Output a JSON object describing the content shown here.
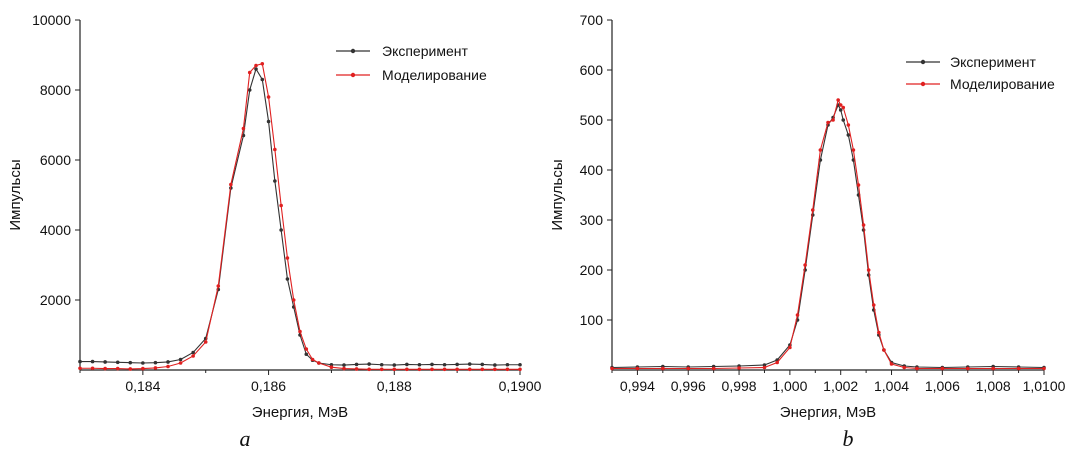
{
  "chart_data": [
    {
      "type": "line",
      "panel_label": "a",
      "xlabel": "Энергия, МэВ",
      "ylabel": "Импульсы",
      "xlim": [
        0.183,
        0.19
      ],
      "ylim": [
        0,
        10000
      ],
      "x_ticks": [
        0.184,
        0.186,
        0.188,
        0.19
      ],
      "x_tick_labels": [
        "0,184",
        "0,186",
        "0,188",
        "0,1900"
      ],
      "y_ticks": [
        2000,
        4000,
        6000,
        8000,
        10000
      ],
      "y_tick_labels": [
        "2000",
        "4000",
        "6000",
        "8000",
        "10000"
      ],
      "legend_position": "top-right",
      "series": [
        {
          "name": "Эксперимент",
          "color": "#333333",
          "x": [
            0.183,
            0.1832,
            0.1834,
            0.1836,
            0.1838,
            0.184,
            0.1842,
            0.1844,
            0.1846,
            0.1848,
            0.185,
            0.1852,
            0.1854,
            0.1856,
            0.1857,
            0.1858,
            0.1859,
            0.186,
            0.1861,
            0.1862,
            0.1863,
            0.1864,
            0.1865,
            0.1866,
            0.1867,
            0.1868,
            0.187,
            0.1872,
            0.1874,
            0.1876,
            0.1878,
            0.188,
            0.1882,
            0.1884,
            0.1886,
            0.1888,
            0.189,
            0.1892,
            0.1894,
            0.1896,
            0.1898,
            0.19
          ],
          "values": [
            240,
            240,
            230,
            220,
            210,
            200,
            210,
            230,
            300,
            500,
            900,
            2300,
            5200,
            6700,
            8000,
            8600,
            8300,
            7100,
            5400,
            4000,
            2600,
            1800,
            1000,
            450,
            280,
            200,
            150,
            140,
            160,
            170,
            150,
            140,
            160,
            150,
            160,
            150,
            160,
            170,
            160,
            140,
            150,
            150
          ]
        },
        {
          "name": "Моделирование",
          "color": "#e02020",
          "x": [
            0.183,
            0.1832,
            0.1834,
            0.1836,
            0.1838,
            0.184,
            0.1842,
            0.1844,
            0.1846,
            0.1848,
            0.185,
            0.1852,
            0.1854,
            0.1856,
            0.1857,
            0.1858,
            0.1859,
            0.186,
            0.1861,
            0.1862,
            0.1863,
            0.1864,
            0.1865,
            0.1866,
            0.1867,
            0.1868,
            0.187,
            0.1872,
            0.1874,
            0.1876,
            0.1878,
            0.188,
            0.1882,
            0.1884,
            0.1886,
            0.1888,
            0.189,
            0.1892,
            0.1894,
            0.1896,
            0.1898,
            0.19
          ],
          "values": [
            50,
            50,
            40,
            40,
            30,
            40,
            60,
            100,
            200,
            400,
            800,
            2400,
            5300,
            6900,
            8500,
            8700,
            8750,
            7800,
            6300,
            4700,
            3200,
            2000,
            1100,
            600,
            300,
            200,
            80,
            40,
            30,
            20,
            20,
            20,
            20,
            20,
            20,
            20,
            20,
            20,
            20,
            20,
            20,
            20
          ]
        }
      ]
    },
    {
      "type": "line",
      "panel_label": "b",
      "xlabel": "Энергия, МэВ",
      "ylabel": "Импульсы",
      "xlim": [
        0.993,
        1.01
      ],
      "ylim": [
        0,
        700
      ],
      "x_ticks": [
        0.994,
        0.996,
        0.998,
        1.0,
        1.002,
        1.004,
        1.006,
        1.008,
        1.01
      ],
      "x_tick_labels": [
        "0,994",
        "0,996",
        "0,998",
        "1,000",
        "1,002",
        "1,004",
        "1,006",
        "1,008",
        "1,0100"
      ],
      "y_ticks": [
        100,
        200,
        300,
        400,
        500,
        600,
        700
      ],
      "y_tick_labels": [
        "100",
        "200",
        "300",
        "400",
        "500",
        "600",
        "700"
      ],
      "legend_position": "top-right",
      "series": [
        {
          "name": "Эксперимент",
          "color": "#333333",
          "x": [
            0.993,
            0.994,
            0.995,
            0.996,
            0.997,
            0.998,
            0.999,
            0.9995,
            1.0,
            1.0003,
            1.0006,
            1.0009,
            1.0012,
            1.0015,
            1.0017,
            1.0019,
            1.002,
            1.0021,
            1.0023,
            1.0025,
            1.0027,
            1.0029,
            1.0031,
            1.0033,
            1.0035,
            1.0037,
            1.004,
            1.0045,
            1.005,
            1.006,
            1.007,
            1.008,
            1.009,
            1.01
          ],
          "values": [
            5,
            6,
            7,
            6,
            7,
            8,
            10,
            20,
            50,
            100,
            200,
            310,
            420,
            490,
            505,
            530,
            520,
            500,
            470,
            420,
            350,
            280,
            190,
            120,
            70,
            40,
            15,
            8,
            6,
            5,
            6,
            7,
            6,
            5
          ]
        },
        {
          "name": "Моделирование",
          "color": "#e02020",
          "x": [
            0.993,
            0.994,
            0.995,
            0.996,
            0.997,
            0.998,
            0.999,
            0.9995,
            1.0,
            1.0003,
            1.0006,
            1.0009,
            1.0012,
            1.0015,
            1.0017,
            1.0019,
            1.002,
            1.0021,
            1.0023,
            1.0025,
            1.0027,
            1.0029,
            1.0031,
            1.0033,
            1.0035,
            1.0037,
            1.004,
            1.0045,
            1.005,
            1.006,
            1.007,
            1.008,
            1.009,
            1.01
          ],
          "values": [
            3,
            3,
            3,
            3,
            3,
            4,
            5,
            15,
            45,
            110,
            210,
            320,
            440,
            495,
            500,
            540,
            530,
            525,
            490,
            440,
            370,
            290,
            200,
            130,
            75,
            40,
            12,
            5,
            3,
            3,
            3,
            3,
            3,
            3
          ]
        }
      ]
    }
  ]
}
